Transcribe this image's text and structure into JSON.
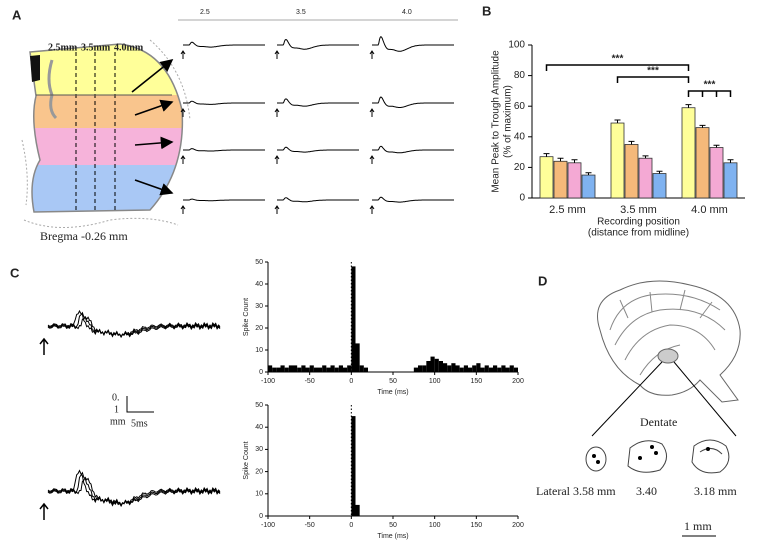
{
  "panel_labels": [
    "A",
    "B",
    "C",
    "D"
  ],
  "panel_a": {
    "column_labels": [
      "2.5",
      "3.5",
      "4.0"
    ],
    "depth_labels": [
      "2.5mm",
      "3.5mm",
      "4.0mm"
    ],
    "bregma": "Bregma -0.26 mm"
  },
  "chart_data": [
    {
      "type": "bar",
      "categories": [
        "2.5 mm",
        "3.5 mm",
        "4.0 mm"
      ],
      "series": [
        {
          "color": "#ffff99",
          "values": [
            27,
            49,
            59
          ],
          "errors": [
            2,
            2,
            2
          ]
        },
        {
          "color": "#f5b97a",
          "values": [
            24,
            35,
            46
          ],
          "errors": [
            2,
            2,
            1.5
          ]
        },
        {
          "color": "#f4a9d4",
          "values": [
            23,
            26,
            33
          ],
          "errors": [
            2,
            1.5,
            1.5
          ]
        },
        {
          "color": "#7fb2f0",
          "values": [
            15,
            16,
            23
          ],
          "errors": [
            1.5,
            1.5,
            2
          ]
        }
      ],
      "ylim": [
        0,
        100
      ],
      "yticks": [
        0,
        20,
        40,
        60,
        80,
        100
      ],
      "ylabel": [
        "Mean Peak to Trough Amplitude",
        "(% of maximum)"
      ],
      "xlabel": [
        "Recording position",
        "(distance from midline)"
      ],
      "annotations": [
        "***",
        "***",
        "***"
      ]
    },
    {
      "type": "histogram",
      "bins": [
        -100,
        -95,
        -90,
        -85,
        -80,
        -75,
        -70,
        -65,
        -60,
        -55,
        -50,
        -45,
        -40,
        -35,
        -30,
        -25,
        -20,
        -15,
        -10,
        -5,
        0,
        5,
        10,
        15,
        20,
        25,
        30,
        35,
        40,
        45,
        50,
        55,
        60,
        65,
        70,
        75,
        80,
        85,
        90,
        95,
        100,
        105,
        110,
        115,
        120,
        125,
        130,
        135,
        140,
        145,
        150,
        155,
        160,
        165,
        170,
        175,
        180,
        185,
        190,
        195,
        200
      ],
      "values": [
        3,
        2,
        2,
        3,
        2,
        3,
        3,
        2,
        3,
        2,
        3,
        2,
        2,
        3,
        2,
        3,
        2,
        3,
        2,
        3,
        48,
        13,
        3,
        2,
        0,
        0,
        0,
        0,
        0,
        0,
        0,
        0,
        0,
        0,
        0,
        2,
        3,
        3,
        5,
        7,
        6,
        5,
        4,
        3,
        4,
        3,
        2,
        3,
        2,
        3,
        4,
        2,
        3,
        2,
        3,
        2,
        3,
        2,
        3,
        2
      ],
      "color": "#000000",
      "event_line": 0,
      "xlim": [
        -100,
        200
      ],
      "xticks": [
        -100,
        -50,
        0,
        50,
        100,
        150,
        200
      ],
      "ylim": [
        0,
        50
      ],
      "yticks": [
        0,
        10,
        20,
        30,
        40,
        50
      ],
      "ylabel": "Spike Count",
      "xlabel": "Time (ms)"
    },
    {
      "type": "histogram",
      "bins": [
        -100,
        -95,
        -90,
        -85,
        -80,
        -75,
        -70,
        -65,
        -60,
        -55,
        -50,
        -45,
        -40,
        -35,
        -30,
        -25,
        -20,
        -15,
        -10,
        -5,
        0,
        5,
        10,
        15,
        20,
        25,
        30,
        35,
        40,
        45,
        50,
        55,
        60,
        65,
        70,
        75,
        80,
        85,
        90,
        95,
        100,
        105,
        110,
        115,
        120,
        125,
        130,
        135,
        140,
        145,
        150,
        155,
        160,
        165,
        170,
        175,
        180,
        185,
        190,
        195,
        200
      ],
      "values": [
        0,
        0,
        0,
        0,
        0,
        0,
        0,
        0,
        0,
        0,
        0,
        0,
        0,
        0,
        0,
        0,
        0,
        0,
        0,
        0,
        45,
        5,
        0,
        0,
        0,
        0,
        0,
        0,
        0,
        0,
        0,
        0,
        0,
        0,
        0,
        0,
        0,
        0,
        0,
        0,
        0,
        0,
        0,
        0,
        0,
        0,
        0,
        0,
        0,
        0,
        0,
        0,
        0,
        0,
        0,
        0,
        0,
        0,
        0,
        0
      ],
      "color": "#000000",
      "event_line": 0,
      "xlim": [
        -100,
        200
      ],
      "xticks": [
        -100,
        -50,
        0,
        50,
        100,
        150,
        200
      ],
      "ylim": [
        0,
        50
      ],
      "yticks": [
        0,
        10,
        20,
        30,
        40,
        50
      ],
      "ylabel": "Spike Count",
      "xlabel": "Time (ms)"
    }
  ],
  "panel_c": {
    "scale_v": [
      "0.",
      "1",
      "mm"
    ],
    "scale_t": "5ms"
  },
  "panel_d": {
    "region": "Dentate",
    "positions": [
      "Lateral 3.58 mm",
      "3.40",
      "3.18 mm"
    ],
    "scale": "1 mm"
  }
}
